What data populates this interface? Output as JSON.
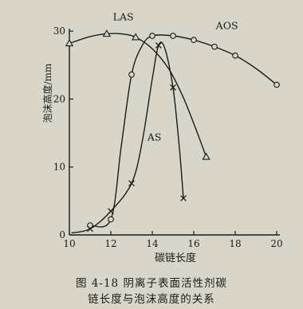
{
  "chart_data": {
    "type": "line",
    "xlabel": "碳链长度",
    "ylabel": "泡沫高度/mm",
    "xlim": [
      10,
      20
    ],
    "ylim": [
      0,
      32
    ],
    "xticks": [
      10,
      12,
      14,
      16,
      18,
      20
    ],
    "yticks": [
      0,
      10,
      20,
      30
    ],
    "grid": false,
    "colors": {
      "ink": "#1d1b17",
      "paper": "#d9d5c8"
    },
    "series": [
      {
        "name": "LAS",
        "marker": "triangle",
        "points": [
          [
            10,
            28.2
          ],
          [
            11.8,
            29.6
          ],
          [
            13.2,
            29.1
          ],
          [
            16.6,
            11.5
          ]
        ],
        "curve": [
          [
            10,
            28.2
          ],
          [
            11,
            29.2
          ],
          [
            11.8,
            29.6
          ],
          [
            12.5,
            29.6
          ],
          [
            13.2,
            29.1
          ],
          [
            14,
            27.4
          ],
          [
            14.8,
            24.4
          ],
          [
            15.5,
            20.2
          ],
          [
            16.1,
            15.6
          ],
          [
            16.6,
            11.5
          ]
        ]
      },
      {
        "name": "AOS",
        "marker": "circle",
        "points": [
          [
            11,
            1.4
          ],
          [
            12,
            2.3
          ],
          [
            13,
            23.6
          ],
          [
            14,
            29.3
          ],
          [
            15,
            29.3
          ],
          [
            16,
            28.7
          ],
          [
            17,
            27.7
          ],
          [
            18,
            26.4
          ],
          [
            20,
            22.1
          ]
        ],
        "curve": [
          [
            11,
            1.4
          ],
          [
            12,
            2.3
          ],
          [
            12.5,
            13
          ],
          [
            13,
            23.6
          ],
          [
            13.5,
            27.8
          ],
          [
            14,
            29.3
          ],
          [
            15,
            29.3
          ],
          [
            16,
            28.7
          ],
          [
            17,
            27.7
          ],
          [
            18,
            26.4
          ],
          [
            19,
            24.5
          ],
          [
            20,
            22.1
          ]
        ]
      },
      {
        "name": "AS",
        "marker": "x",
        "points": [
          [
            11,
            0.9
          ],
          [
            12,
            3.5
          ],
          [
            13,
            7.6
          ],
          [
            14.3,
            27.9
          ],
          [
            15,
            21.7
          ],
          [
            15.5,
            5.4
          ]
        ],
        "curve": [
          [
            10.1,
            0.3
          ],
          [
            11,
            0.9
          ],
          [
            12,
            3.5
          ],
          [
            13,
            7.6
          ],
          [
            13.5,
            13.5
          ],
          [
            14,
            23
          ],
          [
            14.3,
            27.9
          ],
          [
            14.6,
            27.5
          ],
          [
            15,
            21.7
          ],
          [
            15.3,
            13
          ],
          [
            15.5,
            5.4
          ]
        ]
      }
    ],
    "series_labels": [
      {
        "series": "LAS",
        "at": [
          12.6,
          31.6
        ]
      },
      {
        "series": "AOS",
        "at": [
          17.6,
          30.3
        ]
      },
      {
        "series": "AS",
        "at": [
          14.1,
          13.9
        ]
      }
    ]
  },
  "caption": {
    "line1": "图 4-18   阴离子表面活性剂碳",
    "line2": "链长度与泡沫高度的关系"
  }
}
